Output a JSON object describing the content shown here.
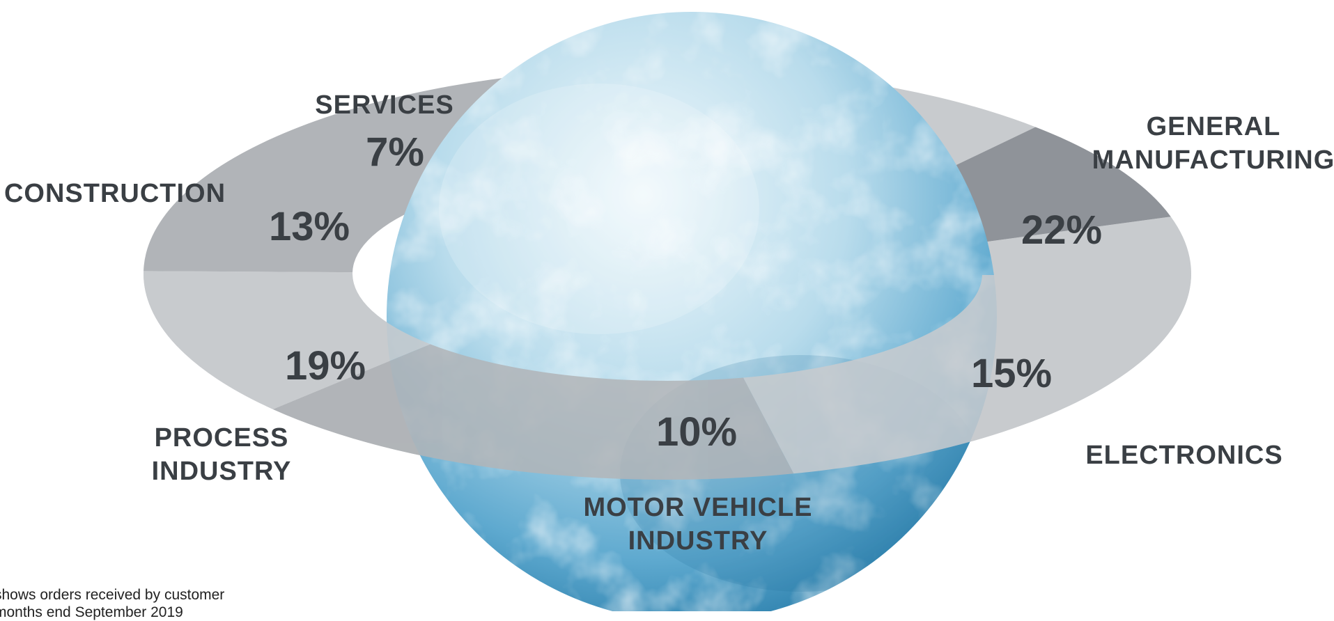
{
  "colors": {
    "ring_light": "#c8cbce",
    "ring_mid": "#b1b4b8",
    "ring_dark": "#8f9399",
    "text": "#3a3f44",
    "globe_light": "#e7f4fa",
    "globe_mid": "#8ec8e2",
    "globe_dark": "#2f86b3"
  },
  "chart_data": {
    "type": "pie",
    "slices": [
      {
        "label": "GENERAL MANUFACTURING",
        "value": 22,
        "value_label": "22%"
      },
      {
        "label": "ELECTRONICS",
        "value": 15,
        "value_label": "15%"
      },
      {
        "label": "MOTOR VEHICLE INDUSTRY",
        "value": 10,
        "value_label": "10%"
      },
      {
        "label": "PROCESS INDUSTRY",
        "value": 19,
        "value_label": "19%"
      },
      {
        "label": "CONSTRUCTION",
        "value": 13,
        "value_label": "13%"
      },
      {
        "label": "SERVICES",
        "value": 7,
        "value_label": "7%"
      }
    ]
  },
  "labels": {
    "general_manufacturing": [
      "GENERAL",
      "MANUFACTURING"
    ],
    "electronics": [
      "ELECTRONICS"
    ],
    "motor_vehicle": [
      "MOTOR VEHICLE",
      "INDUSTRY"
    ],
    "process_industry": [
      "PROCESS",
      "INDUSTRY"
    ],
    "construction": [
      "CONSTRUCTION"
    ],
    "services": [
      "SERVICES"
    ]
  },
  "footnote": {
    "line1": "shows orders received by customer",
    "line2": "months end September 2019"
  }
}
